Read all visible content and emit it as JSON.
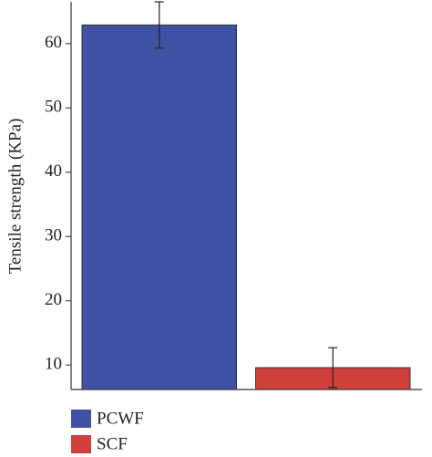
{
  "chart_data": {
    "type": "bar",
    "ylabel": "Tensile strength (KPa)",
    "categories": [
      null
    ],
    "series": [
      {
        "name": "PCWF",
        "color": "#3f51a3",
        "values": [
          62.9
        ],
        "errors": [
          3.6
        ]
      },
      {
        "name": "SCF",
        "color": "#d0403a",
        "values": [
          9.6
        ],
        "errors": [
          3.1
        ]
      }
    ],
    "ylim": [
      6.2,
      66.5
    ],
    "yticks": [
      10,
      20,
      30,
      40,
      50,
      60
    ],
    "grid": false,
    "legend": "bottom-left"
  }
}
